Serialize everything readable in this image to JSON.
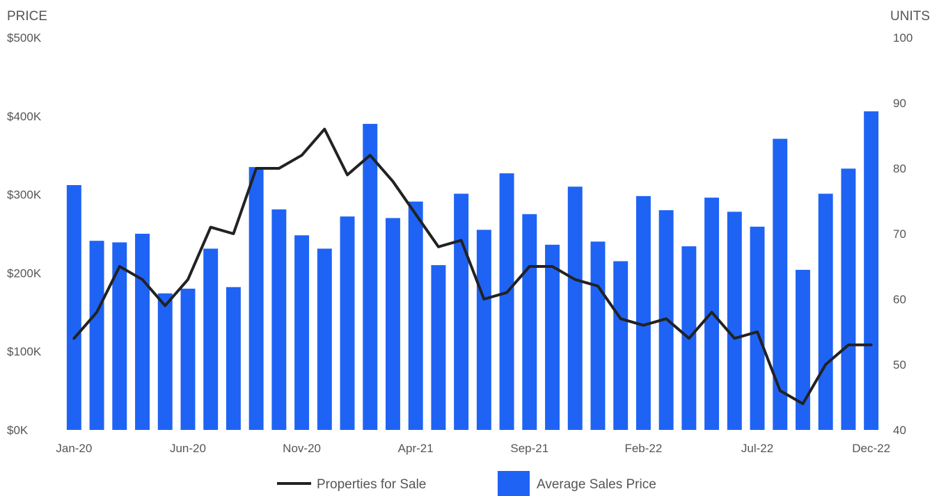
{
  "chart_data": {
    "type": "bar",
    "categories": [
      "Jan-20",
      "Feb-20",
      "Mar-20",
      "Apr-20",
      "May-20",
      "Jun-20",
      "Jul-20",
      "Aug-20",
      "Sep-20",
      "Oct-20",
      "Nov-20",
      "Dec-20",
      "Jan-21",
      "Feb-21",
      "Mar-21",
      "Apr-21",
      "May-21",
      "Jun-21",
      "Jul-21",
      "Aug-21",
      "Sep-21",
      "Oct-21",
      "Nov-21",
      "Dec-21",
      "Jan-22",
      "Feb-22",
      "Mar-22",
      "Apr-22",
      "May-22",
      "Jun-22",
      "Jul-22",
      "Aug-22",
      "Sep-22",
      "Oct-22",
      "Nov-22",
      "Dec-22"
    ],
    "x_tick_labels": [
      "Jan-20",
      "Jun-20",
      "Nov-20",
      "Apr-21",
      "Sep-21",
      "Feb-22",
      "Jul-22",
      "Dec-22"
    ],
    "series": [
      {
        "name": "Average Sales Price",
        "type": "bar",
        "axis": "left",
        "color": "#1f63f5",
        "values": [
          312,
          241,
          239,
          250,
          174,
          180,
          231,
          182,
          335,
          281,
          248,
          231,
          272,
          390,
          270,
          291,
          210,
          301,
          255,
          327,
          275,
          236,
          310,
          240,
          215,
          298,
          280,
          234,
          296,
          278,
          259,
          371,
          204,
          301,
          333,
          406
        ]
      },
      {
        "name": "Properties for Sale",
        "type": "line",
        "axis": "right",
        "color": "#222222",
        "values": [
          54,
          58,
          65,
          63,
          59,
          63,
          71,
          70,
          80,
          80,
          82,
          86,
          79,
          82,
          78,
          73,
          68,
          69,
          60,
          61,
          65,
          65,
          63,
          62,
          57,
          56,
          57,
          54,
          58,
          54,
          55,
          46,
          44,
          50,
          53,
          53
        ]
      }
    ],
    "y_left": {
      "label": "PRICE",
      "min": 0,
      "max": 500,
      "ticks": [
        0,
        100,
        200,
        300,
        400,
        500
      ],
      "tick_labels": [
        "$0K",
        "$100K",
        "$200K",
        "$300K",
        "$400K",
        "$500K"
      ]
    },
    "y_right": {
      "label": "UNITS",
      "min": 40,
      "max": 100,
      "ticks": [
        40,
        50,
        60,
        70,
        80,
        90,
        100
      ],
      "tick_labels": [
        "40",
        "50",
        "60",
        "70",
        "80",
        "90",
        "100"
      ]
    },
    "grid": false,
    "legend": {
      "position": "bottom",
      "items": [
        "Properties for Sale",
        "Average Sales Price"
      ]
    }
  }
}
